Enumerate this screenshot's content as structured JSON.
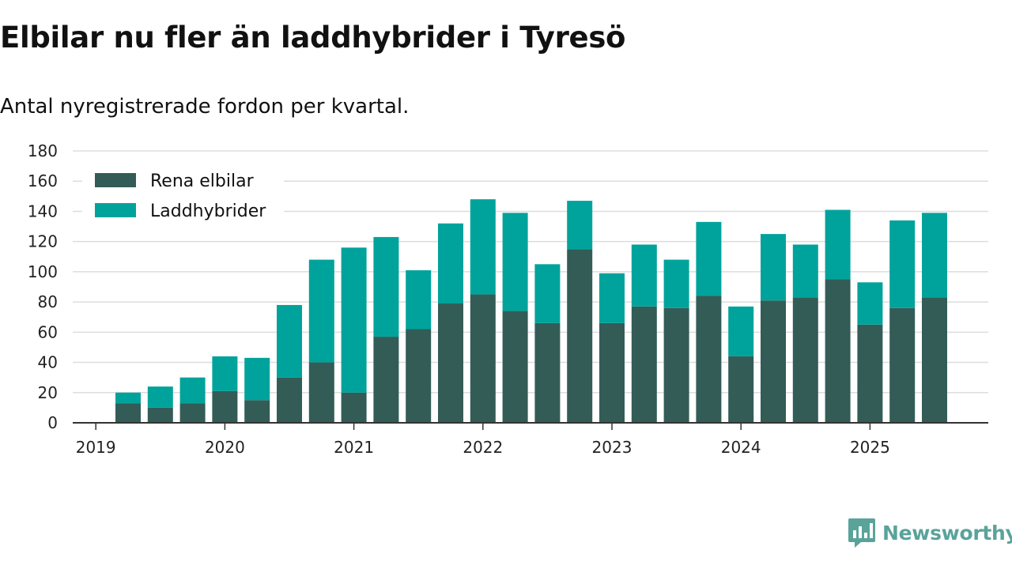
{
  "title": "Elbilar nu fler än laddhybrider i Tyresö",
  "subtitle": "Antal nyregistrerade fordon per kvartal.",
  "brand": {
    "name": "Newsworthy",
    "icon": "newsworthy-logo-icon",
    "color": "#5aa39b"
  },
  "colors": {
    "elbilar": "#335c57",
    "laddhybrider": "#00a39b",
    "grid": "#dddddd",
    "axis": "#333333"
  },
  "chart_data": {
    "type": "bar",
    "stacked": true,
    "title": "Elbilar nu fler än laddhybrider i Tyresö",
    "subtitle": "Antal nyregistrerade fordon per kvartal.",
    "xlabel": "",
    "ylabel": "",
    "ylim": [
      0,
      180
    ],
    "yticks": [
      0,
      20,
      40,
      60,
      80,
      100,
      120,
      140,
      160,
      180
    ],
    "xticks": [
      "2019",
      "2020",
      "2021",
      "2022",
      "2023",
      "2024",
      "2025"
    ],
    "grid": true,
    "legend": "top-left",
    "categories": [
      "2019 Q2",
      "2019 Q3",
      "2019 Q4",
      "2020 Q1",
      "2020 Q2",
      "2020 Q3",
      "2020 Q4",
      "2021 Q1",
      "2021 Q2",
      "2021 Q3",
      "2021 Q4",
      "2022 Q1",
      "2022 Q2",
      "2022 Q3",
      "2022 Q4",
      "2023 Q1",
      "2023 Q2",
      "2023 Q3",
      "2023 Q4",
      "2024 Q1",
      "2024 Q2",
      "2024 Q3",
      "2024 Q4",
      "2025 Q1",
      "2025 Q2",
      "2025 Q3"
    ],
    "series": [
      {
        "name": "Rena elbilar",
        "values": [
          13,
          10,
          13,
          21,
          15,
          30,
          40,
          20,
          57,
          62,
          79,
          85,
          74,
          66,
          115,
          66,
          77,
          76,
          84,
          44,
          81,
          83,
          95,
          65,
          76,
          83
        ]
      },
      {
        "name": "Laddhybrider",
        "values": [
          7,
          14,
          17,
          23,
          28,
          48,
          68,
          96,
          66,
          39,
          53,
          63,
          65,
          39,
          32,
          33,
          41,
          32,
          49,
          33,
          44,
          35,
          46,
          28,
          58,
          56
        ]
      }
    ]
  }
}
